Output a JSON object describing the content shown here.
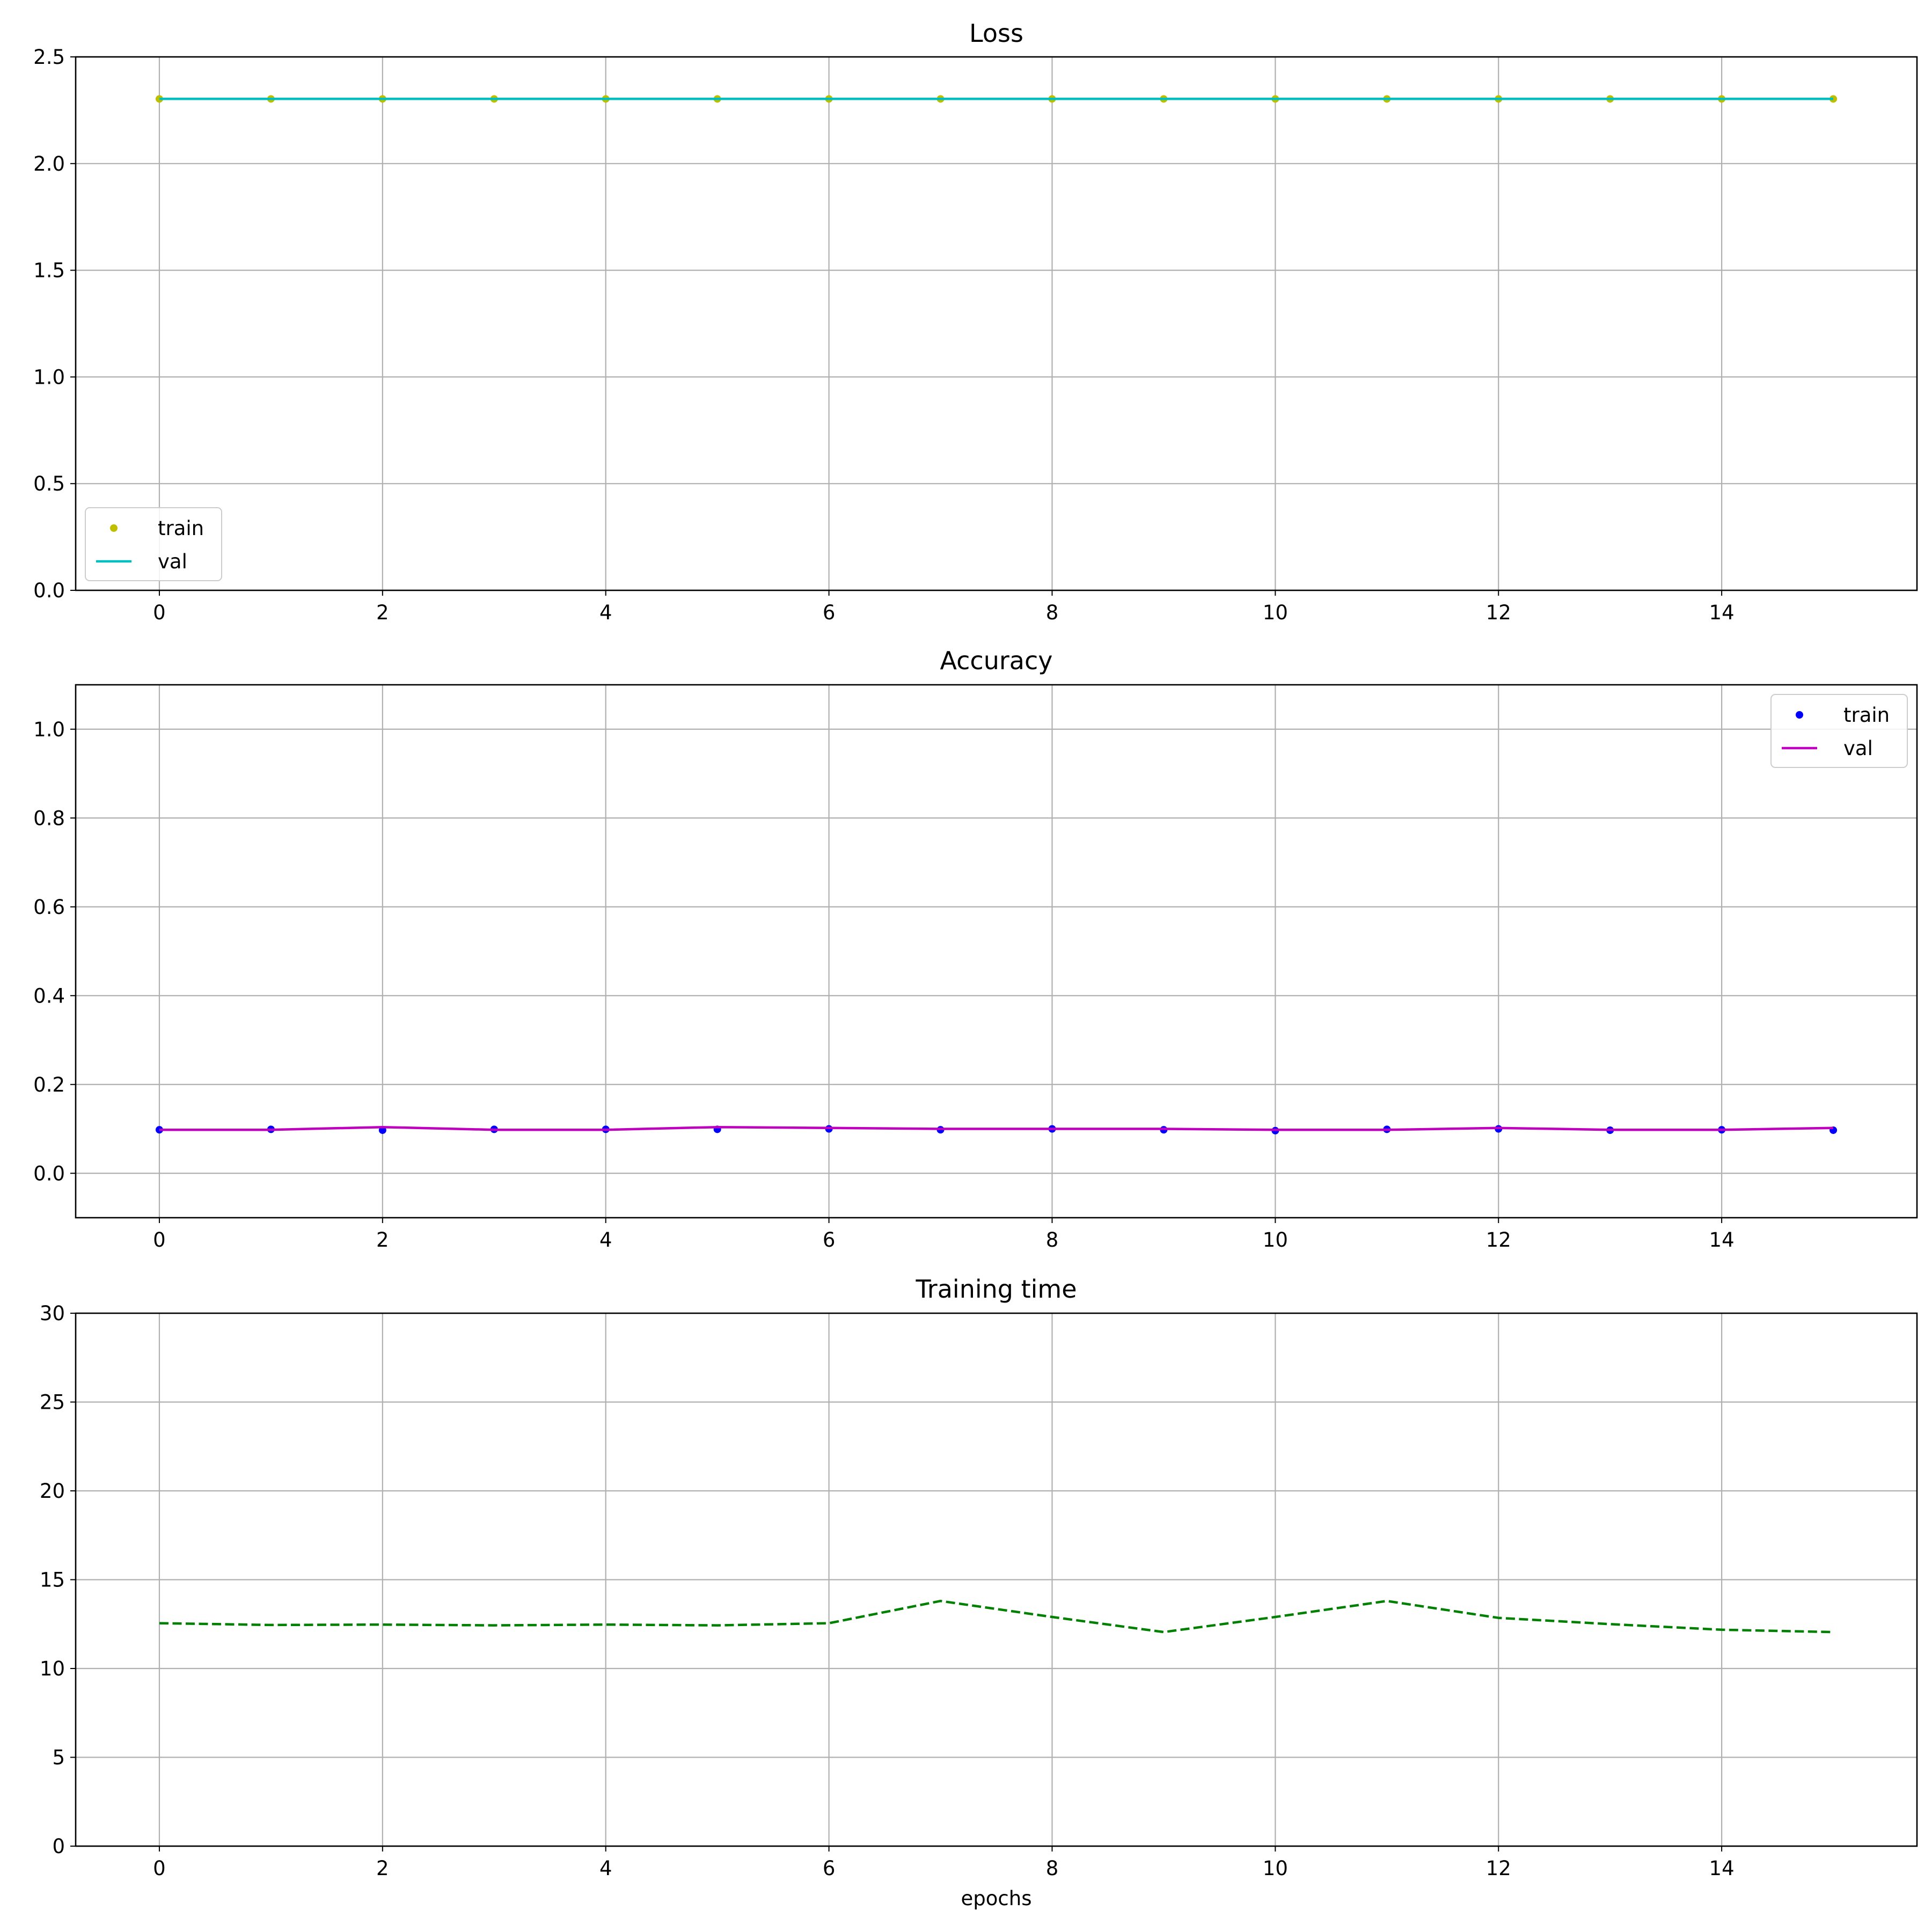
{
  "chart_data": [
    {
      "type": "line",
      "title": "Loss",
      "xlabel": "",
      "ylabel": "",
      "x": [
        0,
        1,
        2,
        3,
        4,
        5,
        6,
        7,
        8,
        9,
        10,
        11,
        12,
        13,
        14,
        15
      ],
      "xlim": [
        -0.75,
        15.75
      ],
      "ylim": [
        0,
        2.5
      ],
      "xticks": [
        0,
        2,
        4,
        6,
        8,
        10,
        12,
        14
      ],
      "yticks": [
        0.0,
        0.5,
        1.0,
        1.5,
        2.0,
        2.5
      ],
      "ytick_labels": [
        "0.0",
        "0.5",
        "1.0",
        "1.5",
        "2.0",
        "2.5"
      ],
      "grid": true,
      "legend_position": "lower-left",
      "series": [
        {
          "name": "train",
          "style": "markers",
          "color": "#bfbf00",
          "values": [
            2.303,
            2.303,
            2.303,
            2.303,
            2.303,
            2.303,
            2.303,
            2.303,
            2.303,
            2.303,
            2.303,
            2.303,
            2.303,
            2.303,
            2.303,
            2.303
          ]
        },
        {
          "name": "val",
          "style": "line",
          "color": "#00bfbf",
          "values": [
            2.303,
            2.303,
            2.303,
            2.303,
            2.303,
            2.303,
            2.303,
            2.303,
            2.303,
            2.303,
            2.303,
            2.303,
            2.303,
            2.303,
            2.303,
            2.303
          ]
        }
      ]
    },
    {
      "type": "line",
      "title": "Accuracy",
      "xlabel": "",
      "ylabel": "",
      "x": [
        0,
        1,
        2,
        3,
        4,
        5,
        6,
        7,
        8,
        9,
        10,
        11,
        12,
        13,
        14,
        15
      ],
      "xlim": [
        -0.75,
        15.75
      ],
      "ylim": [
        -0.1,
        1.1
      ],
      "xticks": [
        0,
        2,
        4,
        6,
        8,
        10,
        12,
        14
      ],
      "yticks": [
        0.0,
        0.2,
        0.4,
        0.6,
        0.8,
        1.0
      ],
      "ytick_labels": [
        "0.0",
        "0.2",
        "0.4",
        "0.6",
        "0.8",
        "1.0"
      ],
      "grid": true,
      "legend_position": "upper-right",
      "series": [
        {
          "name": "train",
          "style": "markers",
          "color": "#0000ff",
          "values": [
            0.098,
            0.099,
            0.097,
            0.099,
            0.099,
            0.099,
            0.1,
            0.098,
            0.1,
            0.098,
            0.096,
            0.099,
            0.1,
            0.097,
            0.098,
            0.097
          ]
        },
        {
          "name": "val",
          "style": "line",
          "color": "#bf00bf",
          "values": [
            0.098,
            0.098,
            0.104,
            0.098,
            0.098,
            0.104,
            0.102,
            0.1,
            0.1,
            0.1,
            0.098,
            0.098,
            0.102,
            0.098,
            0.098,
            0.102
          ]
        }
      ]
    },
    {
      "type": "line",
      "title": "Training time",
      "xlabel": "epochs",
      "ylabel": "",
      "x": [
        0,
        1,
        2,
        3,
        4,
        5,
        6,
        7,
        8,
        9,
        10,
        11,
        12,
        13,
        14,
        15
      ],
      "xlim": [
        -0.75,
        15.75
      ],
      "ylim": [
        0,
        30
      ],
      "xticks": [
        0,
        2,
        4,
        6,
        8,
        10,
        12,
        14
      ],
      "yticks": [
        0,
        5,
        10,
        15,
        20,
        25,
        30
      ],
      "ytick_labels": [
        "0",
        "5",
        "10",
        "15",
        "20",
        "25",
        "30"
      ],
      "grid": true,
      "legend_position": "",
      "series": [
        {
          "style": "dashed-line",
          "color": "#008000",
          "values": [
            12.55,
            12.45,
            12.47,
            12.43,
            12.47,
            12.43,
            12.55,
            13.8,
            12.9,
            12.05,
            12.9,
            13.8,
            12.85,
            12.5,
            12.18,
            12.05
          ]
        }
      ]
    }
  ]
}
